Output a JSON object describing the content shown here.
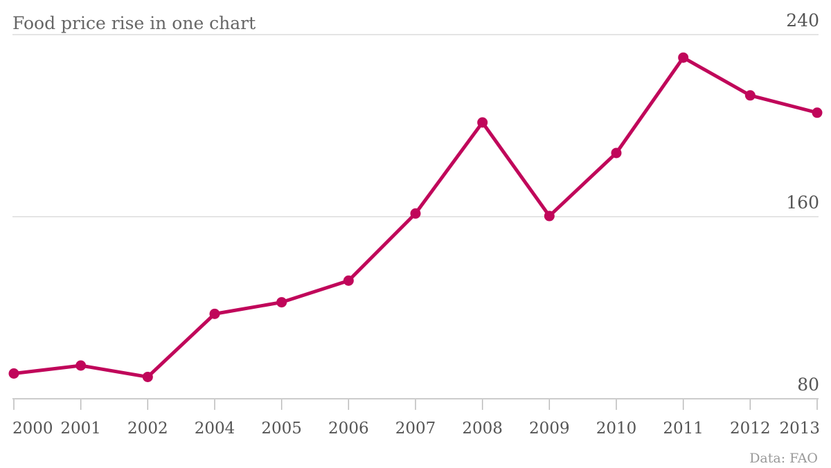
{
  "chart_data": {
    "type": "line",
    "title": "Food price rise in one chart",
    "source": "Data: FAO",
    "xlabel": "",
    "ylabel": "",
    "ylim": [
      80,
      240
    ],
    "yticks": [
      "80",
      "160",
      "240"
    ],
    "grid": true,
    "categories": [
      "2000",
      "2001",
      "2002",
      "2004",
      "2005",
      "2006",
      "2007",
      "2008",
      "2009",
      "2010",
      "2011",
      "2012",
      "2013"
    ],
    "series": [
      {
        "color": "#c0065a",
        "values": [
          91.1,
          94.6,
          89.6,
          117.3,
          122.4,
          131.9,
          161.4,
          201.4,
          160.3,
          188.0,
          229.9,
          213.3,
          205.7
        ]
      }
    ]
  }
}
